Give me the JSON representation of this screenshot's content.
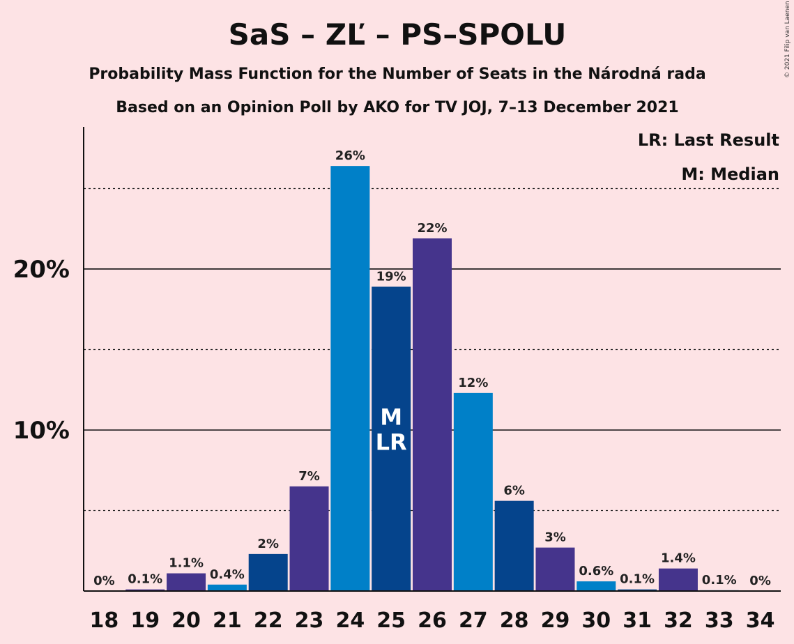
{
  "copyright": "© 2021 Filip van Laenen",
  "chart_data": {
    "type": "bar",
    "title": "SaS – ZĽ – PS–SPOLU",
    "subtitle_1": "Probability Mass Function for the Number of Seats in the Národná rada",
    "subtitle_2": "Based on an Opinion Poll by AKO for TV JOJ, 7–13 December 2021",
    "legend": [
      "LR: Last Result",
      "M: Median"
    ],
    "ylim": [
      0,
      28.7
    ],
    "yticks": [
      {
        "value": 10,
        "label": "10%"
      },
      {
        "value": 20,
        "label": "20%"
      }
    ],
    "minor_gridlines": [
      5,
      15,
      25
    ],
    "categories": [
      "18",
      "19",
      "20",
      "21",
      "22",
      "23",
      "24",
      "25",
      "26",
      "27",
      "28",
      "29",
      "30",
      "31",
      "32",
      "33",
      "34"
    ],
    "values": [
      0,
      0.1,
      1.1,
      0.4,
      2.3,
      6.5,
      26.4,
      18.9,
      21.9,
      12.3,
      5.6,
      2.7,
      0.6,
      0.1,
      1.4,
      0.05,
      0
    ],
    "value_labels": [
      "0%",
      "0.1%",
      "1.1%",
      "0.4%",
      "2%",
      "7%",
      "26%",
      "19%",
      "22%",
      "12%",
      "6%",
      "3%",
      "0.6%",
      "0.1%",
      "1.4%",
      "0.1%",
      "0%"
    ],
    "colors": [
      "#0080C8",
      "#45348C",
      "#45348C",
      "#0080C8",
      "#05448C",
      "#45348C",
      "#0080C8",
      "#05448C",
      "#45348C",
      "#0080C8",
      "#05448C",
      "#45348C",
      "#0080C8",
      "#05448C",
      "#45348C",
      "#0080C8",
      "#05448C"
    ],
    "bar_annotations": [
      {
        "category": "25",
        "lines": [
          "M",
          "LR"
        ]
      }
    ]
  }
}
